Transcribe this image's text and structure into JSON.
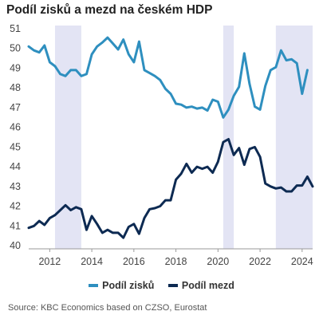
{
  "chart_data": {
    "type": "line",
    "title": "Podíl zisků a mezd na českém HDP",
    "source": "Source: KBC Economics based on CZSO, Eurostat",
    "xlabel": "",
    "ylabel": "",
    "ylim": [
      40,
      51
    ],
    "xlim": [
      2011.0,
      2024.5
    ],
    "yticks": [
      40,
      41,
      42,
      43,
      44,
      45,
      46,
      47,
      48,
      49,
      50,
      51
    ],
    "xticks": [
      2012,
      2014,
      2016,
      2018,
      2020,
      2022,
      2024
    ],
    "grid": false,
    "legend_position": "bottom",
    "shaded_periods": [
      [
        2012.25,
        2013.5
      ],
      [
        2020.25,
        2020.75
      ],
      [
        2022.75,
        2024.5
      ]
    ],
    "series": [
      {
        "name": "Podíl zisků",
        "color": "#2e8fbf",
        "points": [
          [
            2011.0,
            50.1
          ],
          [
            2011.25,
            49.9
          ],
          [
            2011.5,
            49.8
          ],
          [
            2011.75,
            50.15
          ],
          [
            2012.0,
            49.3
          ],
          [
            2012.25,
            49.1
          ],
          [
            2012.5,
            48.7
          ],
          [
            2012.75,
            48.6
          ],
          [
            2013.0,
            48.9
          ],
          [
            2013.25,
            48.9
          ],
          [
            2013.5,
            48.6
          ],
          [
            2013.75,
            48.7
          ],
          [
            2014.0,
            49.7
          ],
          [
            2014.25,
            50.1
          ],
          [
            2014.5,
            50.3
          ],
          [
            2014.75,
            50.55
          ],
          [
            2015.0,
            50.25
          ],
          [
            2015.25,
            49.95
          ],
          [
            2015.5,
            50.45
          ],
          [
            2015.75,
            49.7
          ],
          [
            2016.0,
            49.3
          ],
          [
            2016.25,
            50.35
          ],
          [
            2016.5,
            48.9
          ],
          [
            2016.75,
            48.75
          ],
          [
            2017.0,
            48.6
          ],
          [
            2017.25,
            48.4
          ],
          [
            2017.5,
            47.95
          ],
          [
            2017.75,
            47.7
          ],
          [
            2018.0,
            47.2
          ],
          [
            2018.25,
            47.15
          ],
          [
            2018.5,
            47.0
          ],
          [
            2018.75,
            47.05
          ],
          [
            2019.0,
            46.95
          ],
          [
            2019.25,
            47.0
          ],
          [
            2019.5,
            46.85
          ],
          [
            2019.75,
            47.4
          ],
          [
            2020.0,
            47.3
          ],
          [
            2020.25,
            46.5
          ],
          [
            2020.5,
            46.9
          ],
          [
            2020.75,
            47.6
          ],
          [
            2021.0,
            48.05
          ],
          [
            2021.25,
            49.75
          ],
          [
            2021.5,
            48.2
          ],
          [
            2021.75,
            47.05
          ],
          [
            2022.0,
            46.9
          ],
          [
            2022.25,
            48.1
          ],
          [
            2022.5,
            48.9
          ],
          [
            2022.75,
            49.05
          ],
          [
            2023.0,
            49.9
          ],
          [
            2023.25,
            49.4
          ],
          [
            2023.5,
            49.45
          ],
          [
            2023.75,
            49.25
          ],
          [
            2024.0,
            47.7
          ],
          [
            2024.25,
            48.9
          ]
        ]
      },
      {
        "name": "Podíl mezd",
        "color": "#0d2a52",
        "points": [
          [
            2011.0,
            40.9
          ],
          [
            2011.25,
            41.0
          ],
          [
            2011.5,
            41.25
          ],
          [
            2011.75,
            41.05
          ],
          [
            2012.0,
            41.4
          ],
          [
            2012.25,
            41.55
          ],
          [
            2012.5,
            41.8
          ],
          [
            2012.75,
            42.05
          ],
          [
            2013.0,
            41.8
          ],
          [
            2013.25,
            41.95
          ],
          [
            2013.5,
            41.85
          ],
          [
            2013.75,
            40.8
          ],
          [
            2014.0,
            41.5
          ],
          [
            2014.25,
            41.1
          ],
          [
            2014.5,
            40.65
          ],
          [
            2014.75,
            40.8
          ],
          [
            2015.0,
            40.65
          ],
          [
            2015.25,
            40.65
          ],
          [
            2015.5,
            40.4
          ],
          [
            2015.75,
            40.95
          ],
          [
            2016.0,
            41.1
          ],
          [
            2016.25,
            40.6
          ],
          [
            2016.5,
            41.4
          ],
          [
            2016.75,
            41.85
          ],
          [
            2017.0,
            41.9
          ],
          [
            2017.25,
            42.0
          ],
          [
            2017.5,
            42.3
          ],
          [
            2017.75,
            42.3
          ],
          [
            2018.0,
            43.35
          ],
          [
            2018.25,
            43.65
          ],
          [
            2018.5,
            44.15
          ],
          [
            2018.75,
            43.7
          ],
          [
            2019.0,
            44.0
          ],
          [
            2019.25,
            43.9
          ],
          [
            2019.5,
            44.0
          ],
          [
            2019.75,
            43.7
          ],
          [
            2020.0,
            44.25
          ],
          [
            2020.25,
            45.25
          ],
          [
            2020.5,
            45.4
          ],
          [
            2020.75,
            44.6
          ],
          [
            2021.0,
            44.95
          ],
          [
            2021.25,
            44.1
          ],
          [
            2021.5,
            44.9
          ],
          [
            2021.75,
            45.0
          ],
          [
            2022.0,
            44.5
          ],
          [
            2022.25,
            43.15
          ],
          [
            2022.5,
            43.0
          ],
          [
            2022.75,
            42.9
          ],
          [
            2023.0,
            42.95
          ],
          [
            2023.25,
            42.75
          ],
          [
            2023.5,
            42.75
          ],
          [
            2023.75,
            43.05
          ],
          [
            2024.0,
            43.05
          ],
          [
            2024.25,
            43.5
          ],
          [
            2024.5,
            43.0
          ]
        ]
      }
    ]
  }
}
